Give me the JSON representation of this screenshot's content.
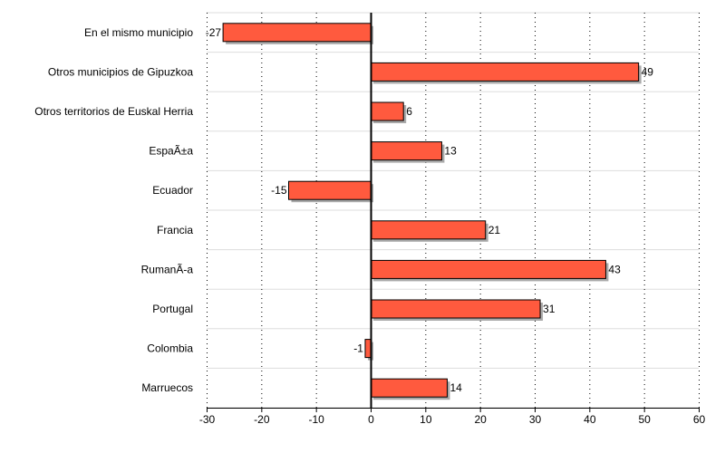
{
  "chart_data": {
    "type": "bar",
    "orientation": "horizontal",
    "categories": [
      "En el mismo municipio",
      "Otros municipios de Gipuzkoa",
      "Otros territorios de Euskal Herria",
      "EspaÃ±a",
      "Ecuador",
      "Francia",
      "RumanÃ-a",
      "Portugal",
      "Colombia",
      "Marruecos"
    ],
    "values": [
      -27,
      49,
      6,
      13,
      -15,
      21,
      43,
      31,
      -1,
      14
    ],
    "value_labels": [
      "-27",
      "49",
      "6",
      "13",
      "-15",
      "21",
      "43",
      "31",
      "-1",
      "14"
    ],
    "xlim": [
      -30,
      60
    ],
    "xticks": [
      -30,
      -20,
      -10,
      0,
      10,
      20,
      30,
      40,
      50,
      60
    ],
    "xtick_labels": [
      "-30",
      "-20",
      "-10",
      "0",
      "10",
      "20",
      "30",
      "40",
      "50",
      "60"
    ],
    "grid": true,
    "legend": "none",
    "bar_color": "#ff5a3e",
    "bar_edge_color": "#000000",
    "shadow_color": "#a9a9a9"
  }
}
